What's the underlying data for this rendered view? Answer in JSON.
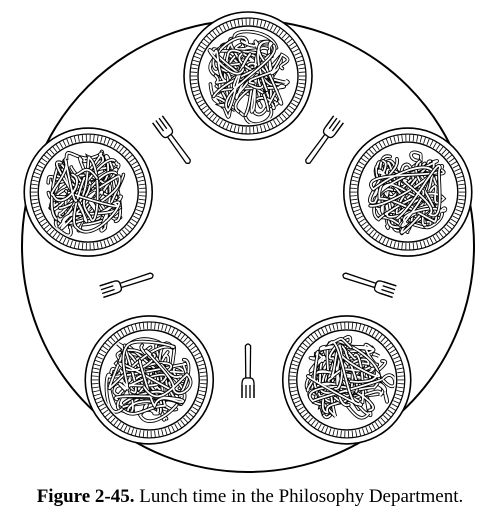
{
  "caption": {
    "number": "Figure 2-45.",
    "text": "Lunch time in the Philosophy Department."
  },
  "diagram": {
    "philosophers": 5,
    "plates": [
      {
        "name": "plate-top"
      },
      {
        "name": "plate-upper-right"
      },
      {
        "name": "plate-lower-right"
      },
      {
        "name": "plate-lower-left"
      },
      {
        "name": "plate-upper-left"
      }
    ],
    "forks": [
      {
        "name": "fork-top-right"
      },
      {
        "name": "fork-right"
      },
      {
        "name": "fork-bottom"
      },
      {
        "name": "fork-left"
      },
      {
        "name": "fork-top-left"
      }
    ],
    "colors": {
      "ink": "#000000",
      "paper": "#ffffff"
    }
  }
}
